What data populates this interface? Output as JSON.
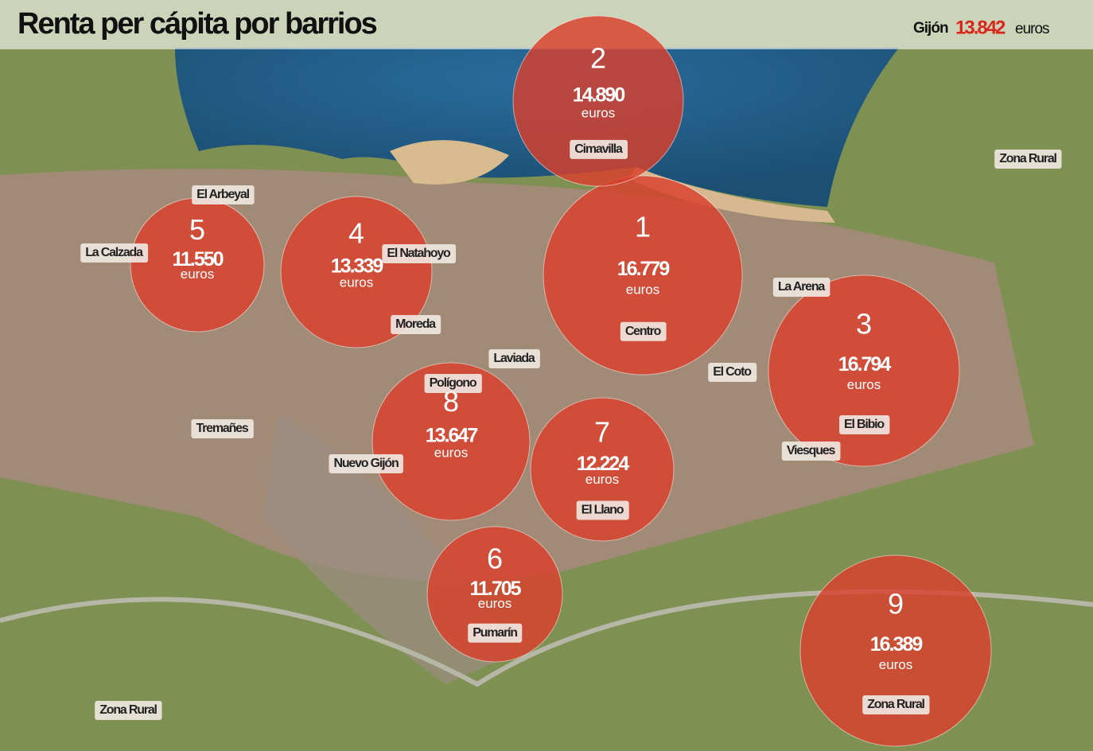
{
  "header": {
    "title": "Renta per cápita por barrios",
    "city": "Gijón",
    "city_value": "13.842",
    "city_unit": "euros"
  },
  "districts": [
    {
      "number": "1",
      "income": "16.779",
      "unit": "euros",
      "label": "Centro"
    },
    {
      "number": "2",
      "income": "14.890",
      "unit": "euros",
      "label": "Cimavilla"
    },
    {
      "number": "3",
      "income": "16.794",
      "unit": "euros",
      "label": "El Bibio"
    },
    {
      "number": "4",
      "income": "13.339",
      "unit": "euros"
    },
    {
      "number": "5",
      "income": "11.550",
      "unit": "euros"
    },
    {
      "number": "6",
      "income": "11.705",
      "unit": "euros",
      "label": "Pumarín"
    },
    {
      "number": "7",
      "income": "12.224",
      "unit": "euros",
      "label": "El Llano"
    },
    {
      "number": "8",
      "income": "13.647",
      "unit": "euros"
    },
    {
      "number": "9",
      "income": "16.389",
      "unit": "euros",
      "label": "Zona Rural"
    }
  ],
  "places": [
    "El Arbeyal",
    "La Calzada",
    "El Natahoyo",
    "Moreda",
    "Laviada",
    "Polígono",
    "El Coto",
    "La Arena",
    "Tremañes",
    "Nuevo Gijón",
    "Viesques",
    "Zona Rural",
    "Zona Rural"
  ]
}
